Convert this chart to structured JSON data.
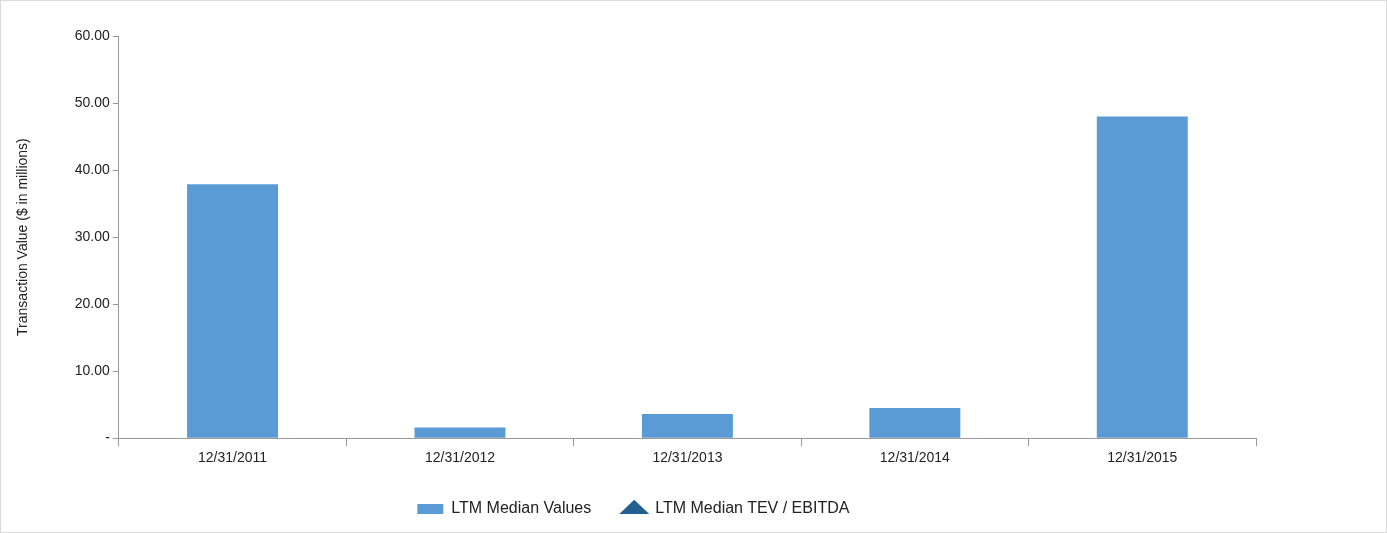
{
  "chart_data": {
    "type": "bar",
    "ylabel": "Transaction Value ($ in millions)",
    "categories": [
      "12/31/2011",
      "12/31/2012",
      "12/31/2013",
      "12/31/2014",
      "12/31/2015"
    ],
    "series": [
      {
        "name": "LTM Median Values",
        "color": "#5b9bd5",
        "values": [
          37.9,
          1.6,
          3.6,
          4.5,
          48.0
        ]
      },
      {
        "name": "LTM Median TEV / EBITDA",
        "type": "line",
        "color": "#255e91",
        "values": [
          null,
          null,
          null,
          null,
          null
        ]
      }
    ],
    "ylim": [
      0,
      60
    ],
    "yticks": [
      {
        "value": 0,
        "label": "-"
      },
      {
        "value": 10,
        "label": "10.00"
      },
      {
        "value": 20,
        "label": "20.00"
      },
      {
        "value": 30,
        "label": "30.00"
      },
      {
        "value": 40,
        "label": "40.00"
      },
      {
        "value": 50,
        "label": "50.00"
      },
      {
        "value": 60,
        "label": "60.00"
      }
    ],
    "grid": false,
    "legend": "bottom",
    "marker": "triangle"
  }
}
